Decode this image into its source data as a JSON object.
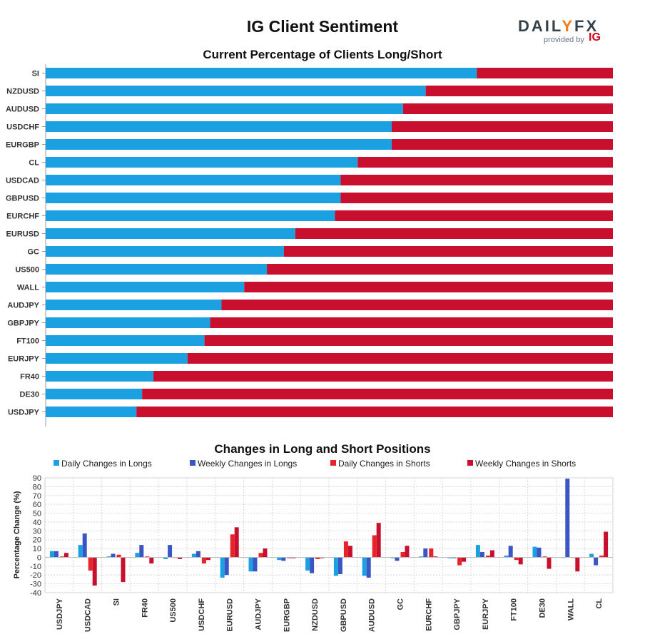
{
  "header": {
    "title": "IG Client Sentiment",
    "logo_text_a": "DAIL",
    "logo_text_b": "Y",
    "logo_text_c": "FX",
    "logo_provided": "provided by",
    "logo_ig": "IG"
  },
  "colors": {
    "long": "#1ba1e2",
    "short": "#c8102e",
    "daily_longs": "#1ba1e2",
    "weekly_longs": "#3a56c4",
    "daily_shorts": "#e8232a",
    "weekly_shorts": "#c8102e"
  },
  "chart_data": [
    {
      "type": "bar",
      "orientation": "horizontal",
      "stacked": true,
      "title": "Current Percentage of Clients Long/Short",
      "categories": [
        "SI",
        "NZDUSD",
        "AUDUSD",
        "USDCHF",
        "EURGBP",
        "CL",
        "USDCAD",
        "GBPUSD",
        "EURCHF",
        "EURUSD",
        "GC",
        "US500",
        "WALL",
        "AUDJPY",
        "GBPJPY",
        "FT100",
        "EURJPY",
        "FR40",
        "DE30",
        "USDJPY"
      ],
      "series": [
        {
          "values": [
            76,
            67,
            63,
            61,
            61,
            55,
            52,
            52,
            51,
            44,
            42,
            39,
            35,
            31,
            29,
            28,
            25,
            19,
            17,
            16
          ]
        },
        {
          "values": [
            24,
            33,
            37,
            39,
            39,
            45,
            48,
            48,
            49,
            56,
            58,
            61,
            65,
            69,
            71,
            72,
            75,
            81,
            83,
            84
          ]
        }
      ],
      "xlim": [
        0,
        100
      ]
    },
    {
      "type": "bar",
      "title": "Changes in Long and Short Positions",
      "ylabel": "Percentage Change (%)",
      "ylim": [
        -40,
        90
      ],
      "yticks": [
        90,
        80,
        70,
        60,
        50,
        40,
        30,
        20,
        10,
        0,
        -10,
        -20,
        -30,
        -40
      ],
      "legend_position": "top",
      "categories": [
        "USDJPY",
        "USDCAD",
        "SI",
        "FR40",
        "US500",
        "USDCHF",
        "EURUSD",
        "AUDJPY",
        "EURGBP",
        "NZDUSD",
        "GBPUSD",
        "AUDUSD",
        "GC",
        "EURCHF",
        "GBPJPY",
        "EURJPY",
        "FT100",
        "DE30",
        "WALL",
        "CL"
      ],
      "series": [
        {
          "name": "Daily Changes in Longs",
          "values": [
            7,
            14,
            1,
            5,
            -2,
            4,
            -23,
            -16,
            -3,
            -15,
            -21,
            -21,
            -1,
            1,
            -1,
            14,
            2,
            12,
            0,
            4
          ]
        },
        {
          "name": "Weekly Changes in Longs",
          "values": [
            7,
            27,
            4,
            14,
            14,
            7,
            -20,
            -16,
            -4,
            -18,
            -19,
            -23,
            -4,
            10,
            -1,
            6,
            13,
            11,
            89,
            -9
          ]
        },
        {
          "name": "Daily Changes in Shorts",
          "values": [
            1,
            -15,
            3,
            1,
            0,
            -7,
            26,
            5,
            -1,
            -2,
            18,
            25,
            6,
            10,
            -9,
            2,
            -3,
            1,
            0,
            2
          ]
        },
        {
          "name": "Weekly Changes in Shorts",
          "values": [
            5,
            -32,
            -28,
            -7,
            -2,
            -3,
            34,
            10,
            -1,
            -1,
            13,
            39,
            13,
            1,
            -5,
            8,
            -8,
            -13,
            -16,
            29
          ]
        }
      ]
    }
  ]
}
